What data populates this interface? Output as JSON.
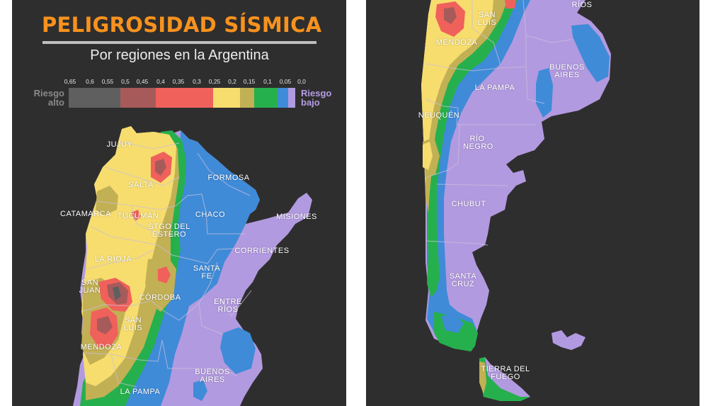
{
  "header": {
    "title": "PELIGROSIDAD SÍSMICA",
    "subtitle": "Por regiones en la Argentina"
  },
  "legend": {
    "ticks": [
      "0,65",
      "0,6",
      "0,55",
      "0,5",
      "0,45",
      "0,4",
      "0,35",
      "0,3",
      "0,25",
      "0,2",
      "0,15",
      "0,1",
      "0,05",
      "0,0"
    ],
    "high_label": "Riesgo alto",
    "low_label": "Riesgo bajo",
    "bins": [
      {
        "color": "#5f5f5f"
      },
      {
        "color": "#a75a5a"
      },
      {
        "color": "#f0615b"
      },
      {
        "color": "#f7dd6e"
      },
      {
        "color": "#c2b054"
      },
      {
        "color": "#26b04d"
      },
      {
        "color": "#3f8bd8"
      },
      {
        "color": "#b29ae0"
      }
    ]
  },
  "colors": {
    "background": "#2f2e2e",
    "title": "#f7921e",
    "very_high": "#5f5f5f",
    "high": "#a75a5a",
    "medium_high": "#f0615b",
    "medium": "#f7dd6e",
    "olive": "#c2b054",
    "low": "#26b04d",
    "very_low": "#3f8bd8",
    "minimal": "#b29ae0",
    "border": "#c9c0dc"
  },
  "map_left": {
    "provinces": [
      "JUJUY",
      "SALTA",
      "FORMOSA",
      "CATAMARCA",
      "TUCUMÁN",
      "CHACO",
      "MISIONES",
      "STGO DEL ESTERO",
      "CORRIENTES",
      "LA RIOJA",
      "SANTA FE",
      "SAN JUAN",
      "CÓRDOBA",
      "ENTRE RÍOS",
      "SAN LUIS",
      "MENDOZA",
      "BUENOS AIRES",
      "LA PAMPA"
    ]
  },
  "map_right": {
    "provinces": [
      "RÍOS",
      "SAN LUIS",
      "MENDOZA",
      "BUENOS AIRES",
      "LA PAMPA",
      "NEUQUÉN",
      "RÍO NEGRO",
      "CHUBUT",
      "SANTA CRUZ",
      "TIERRA DEL FUEGO"
    ]
  }
}
